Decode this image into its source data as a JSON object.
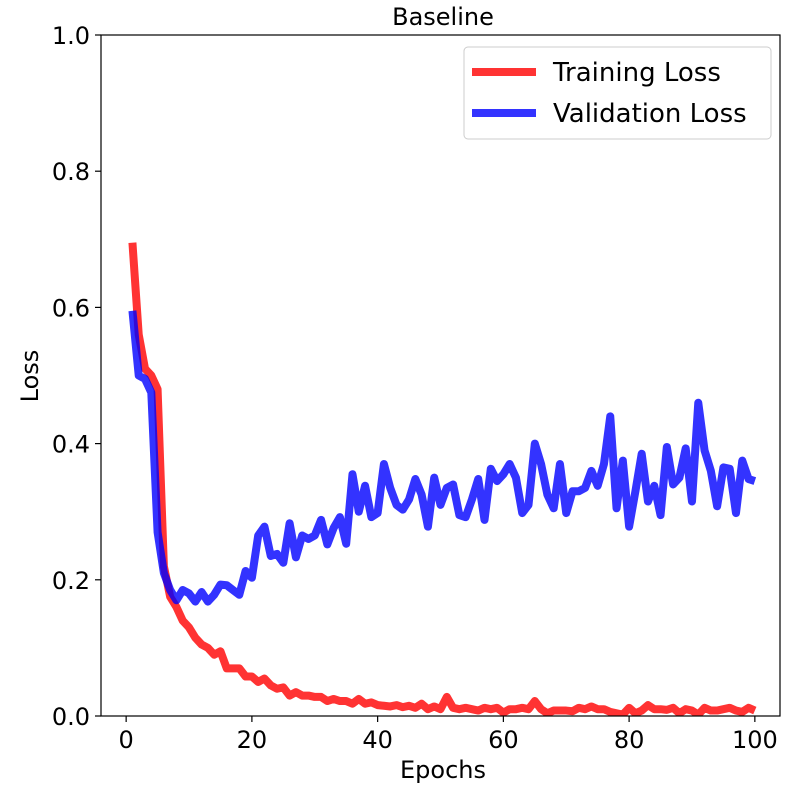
{
  "chart_data": {
    "type": "line",
    "title": "Baseline",
    "xlabel": "Epochs",
    "ylabel": "Loss",
    "xlim": [
      -4,
      104
    ],
    "ylim": [
      0,
      1.0
    ],
    "xticks": [
      0,
      20,
      40,
      60,
      80,
      100
    ],
    "xtick_labels": [
      "0",
      "20",
      "40",
      "60",
      "80",
      "100"
    ],
    "yticks": [
      0.0,
      0.2,
      0.4,
      0.6,
      0.8,
      1.0
    ],
    "ytick_labels": [
      "0.0",
      "0.2",
      "0.4",
      "0.6",
      "0.8",
      "1.0"
    ],
    "grid": false,
    "legend_position": "top-right",
    "x": [
      1,
      2,
      3,
      4,
      5,
      6,
      7,
      8,
      9,
      10,
      11,
      12,
      13,
      14,
      15,
      16,
      17,
      18,
      19,
      20,
      21,
      22,
      23,
      24,
      25,
      26,
      27,
      28,
      29,
      30,
      31,
      32,
      33,
      34,
      35,
      36,
      37,
      38,
      39,
      40,
      41,
      42,
      43,
      44,
      45,
      46,
      47,
      48,
      49,
      50,
      51,
      52,
      53,
      54,
      55,
      56,
      57,
      58,
      59,
      60,
      61,
      62,
      63,
      64,
      65,
      66,
      67,
      68,
      69,
      70,
      71,
      72,
      73,
      74,
      75,
      76,
      77,
      78,
      79,
      80,
      81,
      82,
      83,
      84,
      85,
      86,
      87,
      88,
      89,
      90,
      91,
      92,
      93,
      94,
      95,
      96,
      97,
      98,
      99,
      100
    ],
    "series": [
      {
        "name": "Training Loss",
        "color": "#ff0000",
        "values": [
          0.695,
          0.56,
          0.51,
          0.5,
          0.48,
          0.22,
          0.175,
          0.16,
          0.14,
          0.13,
          0.115,
          0.105,
          0.1,
          0.09,
          0.095,
          0.07,
          0.07,
          0.07,
          0.058,
          0.058,
          0.05,
          0.055,
          0.045,
          0.04,
          0.042,
          0.03,
          0.035,
          0.03,
          0.03,
          0.028,
          0.028,
          0.022,
          0.025,
          0.022,
          0.022,
          0.018,
          0.025,
          0.018,
          0.02,
          0.016,
          0.015,
          0.014,
          0.016,
          0.013,
          0.015,
          0.012,
          0.018,
          0.01,
          0.014,
          0.01,
          0.028,
          0.012,
          0.01,
          0.012,
          0.01,
          0.008,
          0.012,
          0.01,
          0.012,
          0.005,
          0.01,
          0.01,
          0.012,
          0.01,
          0.022,
          0.01,
          0.004,
          0.008,
          0.008,
          0.008,
          0.007,
          0.012,
          0.01,
          0.014,
          0.01,
          0.01,
          0.006,
          0.004,
          0.002,
          0.012,
          0.004,
          0.008,
          0.016,
          0.01,
          0.01,
          0.009,
          0.012,
          0.004,
          0.01,
          0.008,
          0.002,
          0.012,
          0.008,
          0.008,
          0.01,
          0.012,
          0.008,
          0.006,
          0.012,
          0.008
        ]
      },
      {
        "name": "Validation Loss",
        "color": "#0000ff",
        "values": [
          0.595,
          0.5,
          0.495,
          0.475,
          0.27,
          0.21,
          0.185,
          0.17,
          0.185,
          0.18,
          0.168,
          0.182,
          0.168,
          0.178,
          0.193,
          0.192,
          0.185,
          0.178,
          0.213,
          0.203,
          0.265,
          0.278,
          0.235,
          0.238,
          0.225,
          0.283,
          0.233,
          0.265,
          0.26,
          0.265,
          0.288,
          0.252,
          0.276,
          0.292,
          0.253,
          0.355,
          0.3,
          0.338,
          0.292,
          0.298,
          0.37,
          0.335,
          0.31,
          0.303,
          0.318,
          0.348,
          0.325,
          0.278,
          0.35,
          0.31,
          0.335,
          0.34,
          0.295,
          0.292,
          0.318,
          0.348,
          0.288,
          0.363,
          0.345,
          0.355,
          0.37,
          0.35,
          0.298,
          0.31,
          0.4,
          0.37,
          0.325,
          0.305,
          0.37,
          0.298,
          0.33,
          0.33,
          0.335,
          0.36,
          0.338,
          0.37,
          0.44,
          0.305,
          0.375,
          0.278,
          0.33,
          0.385,
          0.315,
          0.338,
          0.295,
          0.395,
          0.34,
          0.35,
          0.393,
          0.315,
          0.46,
          0.39,
          0.36,
          0.308,
          0.365,
          0.363,
          0.298,
          0.375,
          0.348,
          0.345
        ]
      }
    ]
  }
}
